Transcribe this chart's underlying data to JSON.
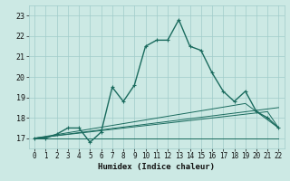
{
  "xlabel": "Humidex (Indice chaleur)",
  "xlim": [
    -0.5,
    22.5
  ],
  "ylim": [
    16.5,
    23.5
  ],
  "yticks": [
    17,
    18,
    19,
    20,
    21,
    22,
    23
  ],
  "xticks": [
    0,
    1,
    2,
    3,
    4,
    5,
    6,
    7,
    8,
    9,
    10,
    11,
    12,
    13,
    14,
    15,
    16,
    17,
    18,
    19,
    20,
    21,
    22
  ],
  "background_color": "#cce9e4",
  "grid_color": "#a0ccca",
  "line_color": "#1a6b5e",
  "main_series": {
    "x": [
      0,
      1,
      2,
      3,
      4,
      5,
      6,
      7,
      8,
      9,
      10,
      11,
      12,
      13,
      14,
      15,
      16,
      17,
      18,
      19,
      20,
      21,
      22
    ],
    "y": [
      17.0,
      17.0,
      17.2,
      17.5,
      17.5,
      16.8,
      17.3,
      19.5,
      18.8,
      19.6,
      21.5,
      21.8,
      21.8,
      22.8,
      21.5,
      21.3,
      20.2,
      19.3,
      18.8,
      19.3,
      18.3,
      18.0,
      17.5
    ]
  },
  "flat_line": {
    "x": [
      0,
      9,
      22
    ],
    "y": [
      17.0,
      17.0,
      17.0
    ]
  },
  "diagonal1": {
    "x": [
      0,
      19,
      22
    ],
    "y": [
      17.0,
      18.7,
      17.5
    ]
  },
  "diagonal2": {
    "x": [
      0,
      21,
      22
    ],
    "y": [
      17.0,
      18.3,
      17.5
    ]
  },
  "diagonal3": {
    "x": [
      0,
      22
    ],
    "y": [
      17.0,
      18.5
    ]
  },
  "triangle": {
    "x": [
      21,
      22,
      22
    ],
    "y": [
      17.5,
      17.5,
      17.5
    ]
  }
}
